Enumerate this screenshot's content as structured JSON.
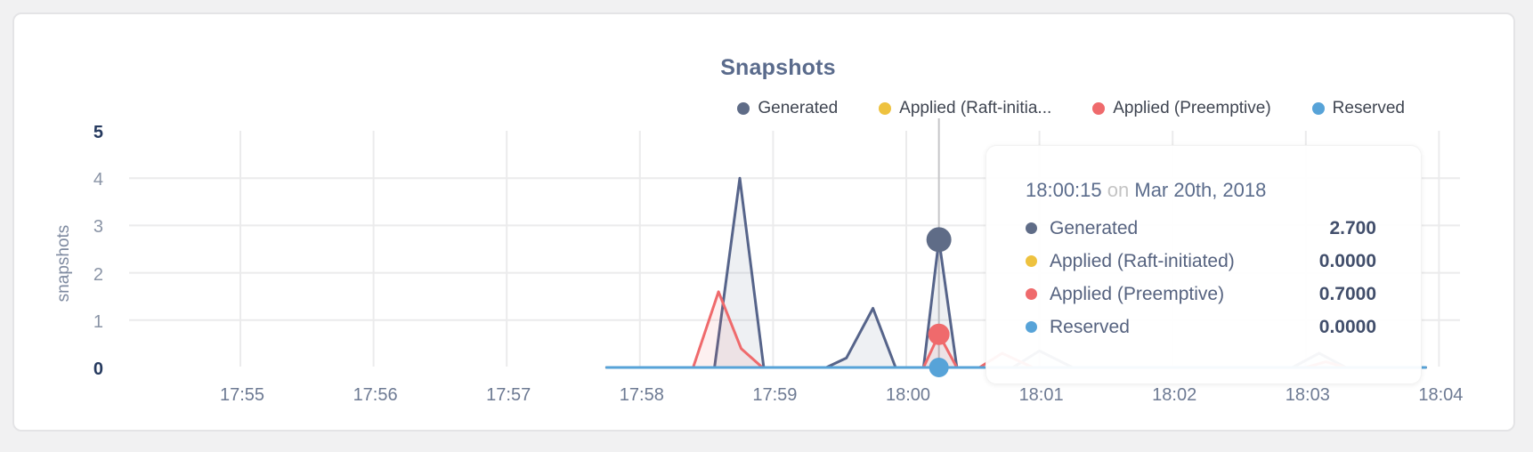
{
  "chart_data": {
    "type": "line",
    "title": "Snapshots",
    "ylabel": "snapshots",
    "xlabel": "",
    "ylim": [
      0,
      5
    ],
    "grid": true,
    "legend_position": "top-right",
    "x_ticks": [
      "17:55",
      "17:56",
      "17:57",
      "17:58",
      "17:59",
      "18:00",
      "18:01",
      "18:02",
      "18:03",
      "18:04"
    ],
    "y_ticks": [
      {
        "v": 5,
        "label": "5",
        "bold": true
      },
      {
        "v": 4,
        "label": "4",
        "bold": false
      },
      {
        "v": 3,
        "label": "3",
        "bold": false
      },
      {
        "v": 2,
        "label": "2",
        "bold": false
      },
      {
        "v": 1,
        "label": "1",
        "bold": false
      },
      {
        "v": 0,
        "label": "0",
        "bold": true
      }
    ],
    "x_unit": "minutes after 17:55",
    "series": [
      {
        "name": "Generated",
        "color": "#5f6c87",
        "stroke": "#56648a",
        "fill": "rgba(90,103,135,0.10)",
        "points": [
          [
            2.75,
            0
          ],
          [
            3.56,
            0
          ],
          [
            3.75,
            4.0
          ],
          [
            3.93,
            0
          ],
          [
            4.4,
            0
          ],
          [
            4.55,
            0.2
          ],
          [
            4.75,
            1.25
          ],
          [
            4.92,
            0
          ],
          [
            5.13,
            0
          ],
          [
            5.245,
            2.7
          ],
          [
            5.38,
            0
          ],
          [
            5.8,
            0
          ],
          [
            6.0,
            0.35
          ],
          [
            6.25,
            0
          ],
          [
            7.9,
            0
          ],
          [
            8.1,
            0.3
          ],
          [
            8.3,
            0
          ],
          [
            8.9,
            0
          ]
        ]
      },
      {
        "name": "Applied (Raft-initiated)",
        "color": "#eec23f",
        "stroke": "#eec23f",
        "fill": "none",
        "points": [
          [
            2.75,
            0
          ],
          [
            8.9,
            0
          ]
        ]
      },
      {
        "name": "Applied (Preemptive)",
        "color": "#ef6a6c",
        "stroke": "#ef6a6c",
        "fill": "rgba(240,106,108,0.10)",
        "points": [
          [
            2.75,
            0
          ],
          [
            3.4,
            0
          ],
          [
            3.59,
            1.6
          ],
          [
            3.76,
            0.4
          ],
          [
            3.92,
            0
          ],
          [
            5.13,
            0
          ],
          [
            5.245,
            0.7
          ],
          [
            5.38,
            0
          ],
          [
            5.55,
            0
          ],
          [
            5.72,
            0.3
          ],
          [
            5.95,
            0
          ],
          [
            8.0,
            0
          ],
          [
            8.15,
            0.12
          ],
          [
            8.3,
            0
          ],
          [
            8.9,
            0
          ]
        ]
      },
      {
        "name": "Reserved",
        "color": "#57a3d8",
        "stroke": "#57a3d8",
        "fill": "none",
        "points": [
          [
            2.75,
            0
          ],
          [
            8.9,
            0
          ]
        ]
      }
    ],
    "hover": {
      "x_minutes": 5.245,
      "time": "18:00:15",
      "dots": [
        {
          "series": "Generated",
          "value": 2.7,
          "r": 14,
          "color": "#5f6c87"
        },
        {
          "series": "Applied (Preemptive)",
          "value": 0.7,
          "r": 12,
          "color": "#ef6a6c"
        },
        {
          "series": "Reserved",
          "value": 0,
          "r": 11,
          "color": "#57a3d8"
        }
      ]
    }
  },
  "legend": {
    "items": [
      {
        "label": "Generated",
        "color": "#5f6c87"
      },
      {
        "label": "Applied (Raft-initia...",
        "color": "#eec23f"
      },
      {
        "label": "Applied (Preemptive)",
        "color": "#ef6a6c"
      },
      {
        "label": "Reserved",
        "color": "#57a3d8"
      }
    ]
  },
  "tooltip": {
    "time": "18:00:15",
    "connector": "on",
    "date": "Mar 20th, 2018",
    "rows": [
      {
        "label": "Generated",
        "value": "2.700",
        "color": "#5f6c87"
      },
      {
        "label": "Applied (Raft-initiated)",
        "value": "0.0000",
        "color": "#eec23f"
      },
      {
        "label": "Applied (Preemptive)",
        "value": "0.7000",
        "color": "#ef6a6c"
      },
      {
        "label": "Reserved",
        "value": "0.0000",
        "color": "#57a3d8"
      }
    ]
  },
  "colors": {
    "grid": "#ebebec",
    "hover_line": "#c6c6c8",
    "card_border": "#e4e4e6",
    "page_bg": "#f1f1f2"
  }
}
